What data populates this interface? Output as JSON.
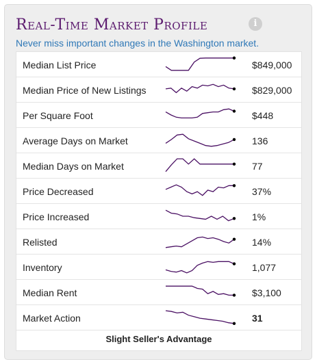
{
  "header": {
    "title": "Real-Time Market Profile",
    "info_icon": "info-icon",
    "subtitle": "Never miss important changes in the Washington market."
  },
  "colors": {
    "title": "#5b1a6e",
    "subtitle": "#2f78b7",
    "sparkline": "#4a1063",
    "panel_bg": "#eeeeee"
  },
  "rows": [
    {
      "label": "Median List Price",
      "value": "$849,000",
      "bold": false,
      "trend": [
        0.35,
        0.1,
        0.1,
        0.1,
        0.1,
        0.65,
        0.9,
        0.92,
        0.92,
        0.92,
        0.92,
        0.92,
        0.92
      ]
    },
    {
      "label": "Median Price of New Listings",
      "value": "$829,000",
      "bold": false,
      "trend": [
        0.55,
        0.6,
        0.3,
        0.6,
        0.4,
        0.7,
        0.6,
        0.8,
        0.75,
        0.85,
        0.7,
        0.8,
        0.6,
        0.55
      ]
    },
    {
      "label": "Per Square Foot",
      "value": "$448",
      "bold": false,
      "trend": [
        0.7,
        0.5,
        0.35,
        0.3,
        0.3,
        0.3,
        0.35,
        0.6,
        0.65,
        0.7,
        0.7,
        0.85,
        0.9,
        0.75
      ]
    },
    {
      "label": "Average Days on Market",
      "value": "136",
      "bold": false,
      "trend": [
        0.3,
        0.55,
        0.85,
        0.9,
        0.6,
        0.45,
        0.3,
        0.15,
        0.1,
        0.15,
        0.25,
        0.35,
        0.55
      ]
    },
    {
      "label": "Median Days on Market",
      "value": "77",
      "bold": false,
      "trend": [
        0.1,
        0.55,
        0.95,
        0.95,
        0.6,
        0.95,
        0.6,
        0.6,
        0.6,
        0.6,
        0.6,
        0.6,
        0.6
      ]
    },
    {
      "label": "Price Decreased",
      "value": "37%",
      "bold": false,
      "trend": [
        0.6,
        0.75,
        0.9,
        0.75,
        0.45,
        0.3,
        0.45,
        0.2,
        0.55,
        0.45,
        0.75,
        0.7,
        0.85,
        0.85
      ]
    },
    {
      "label": "Price Increased",
      "value": "1%",
      "bold": false,
      "trend": [
        0.9,
        0.7,
        0.65,
        0.5,
        0.5,
        0.4,
        0.35,
        0.3,
        0.5,
        0.3,
        0.5,
        0.2,
        0.35
      ]
    },
    {
      "label": "Relisted",
      "value": "14%",
      "bold": false,
      "trend": [
        0.1,
        0.15,
        0.2,
        0.15,
        0.35,
        0.55,
        0.75,
        0.8,
        0.7,
        0.75,
        0.65,
        0.5,
        0.4,
        0.65
      ]
    },
    {
      "label": "Inventory",
      "value": "1,077",
      "bold": false,
      "trend": [
        0.3,
        0.2,
        0.15,
        0.25,
        0.1,
        0.25,
        0.6,
        0.75,
        0.85,
        0.8,
        0.85,
        0.85,
        0.85,
        0.7
      ]
    },
    {
      "label": "Median Rent",
      "value": "$3,100",
      "bold": false,
      "trend": [
        0.9,
        0.9,
        0.9,
        0.9,
        0.9,
        0.9,
        0.75,
        0.7,
        0.4,
        0.55,
        0.35,
        0.4,
        0.3,
        0.3
      ]
    },
    {
      "label": "Market Action",
      "value": "31",
      "bold": true,
      "trend": [
        0.95,
        0.9,
        0.8,
        0.85,
        0.65,
        0.55,
        0.45,
        0.4,
        0.35,
        0.3,
        0.25,
        0.15,
        0.1
      ]
    }
  ],
  "footer": {
    "label": "Slight Seller's Advantage"
  }
}
